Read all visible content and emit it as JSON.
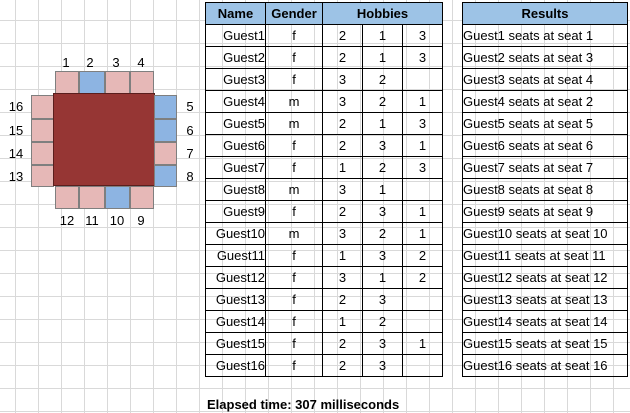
{
  "seat_labels": {
    "top": [
      "1",
      "2",
      "3",
      "4"
    ],
    "right": [
      "5",
      "6",
      "7",
      "8"
    ],
    "bottom": [
      "12",
      "11",
      "10",
      "9"
    ],
    "left": [
      "16",
      "15",
      "14",
      "13"
    ]
  },
  "guest_table": {
    "headers": {
      "name": "Name",
      "gender": "Gender",
      "hobbies": "Hobbies"
    },
    "rows": [
      {
        "name": "Guest1",
        "gender": "f",
        "h1": "2",
        "h2": "1",
        "h3": "3"
      },
      {
        "name": "Guest2",
        "gender": "f",
        "h1": "2",
        "h2": "1",
        "h3": "3"
      },
      {
        "name": "Guest3",
        "gender": "f",
        "h1": "3",
        "h2": "2",
        "h3": ""
      },
      {
        "name": "Guest4",
        "gender": "m",
        "h1": "3",
        "h2": "2",
        "h3": "1"
      },
      {
        "name": "Guest5",
        "gender": "m",
        "h1": "2",
        "h2": "1",
        "h3": "3"
      },
      {
        "name": "Guest6",
        "gender": "f",
        "h1": "2",
        "h2": "3",
        "h3": "1"
      },
      {
        "name": "Guest7",
        "gender": "f",
        "h1": "1",
        "h2": "2",
        "h3": "3"
      },
      {
        "name": "Guest8",
        "gender": "m",
        "h1": "3",
        "h2": "1",
        "h3": ""
      },
      {
        "name": "Guest9",
        "gender": "f",
        "h1": "2",
        "h2": "3",
        "h3": "1"
      },
      {
        "name": "Guest10",
        "gender": "m",
        "h1": "3",
        "h2": "2",
        "h3": "1"
      },
      {
        "name": "Guest11",
        "gender": "f",
        "h1": "1",
        "h2": "3",
        "h3": "2"
      },
      {
        "name": "Guest12",
        "gender": "f",
        "h1": "3",
        "h2": "1",
        "h3": "2"
      },
      {
        "name": "Guest13",
        "gender": "f",
        "h1": "2",
        "h2": "3",
        "h3": ""
      },
      {
        "name": "Guest14",
        "gender": "f",
        "h1": "1",
        "h2": "2",
        "h3": ""
      },
      {
        "name": "Guest15",
        "gender": "f",
        "h1": "2",
        "h2": "3",
        "h3": "1"
      },
      {
        "name": "Guest16",
        "gender": "f",
        "h1": "2",
        "h2": "3",
        "h3": ""
      }
    ]
  },
  "results_table": {
    "header": "Results",
    "rows": [
      "Guest1 seats at seat 1",
      "Guest2 seats at seat 3",
      "Guest3 seats at seat 4",
      "Guest4 seats at seat 2",
      "Guest5 seats at seat 5",
      "Guest6 seats at seat 6",
      "Guest7 seats at seat 7",
      "Guest8 seats at seat 8",
      "Guest9 seats at seat 9",
      "Guest10 seats at seat 10",
      "Guest11 seats at seat 11",
      "Guest12 seats at seat 12",
      "Guest13 seats at seat 13",
      "Guest14 seats at seat 14",
      "Guest15 seats at seat 15",
      "Guest16 seats at seat 16"
    ]
  },
  "elapsed_text": "Elapsed time: 307 milliseconds",
  "colors": {
    "seat_female": "#e6b8b7",
    "seat_male": "#8db4e2",
    "table_top": "#963634",
    "header_fill": "#9dc3e6"
  }
}
